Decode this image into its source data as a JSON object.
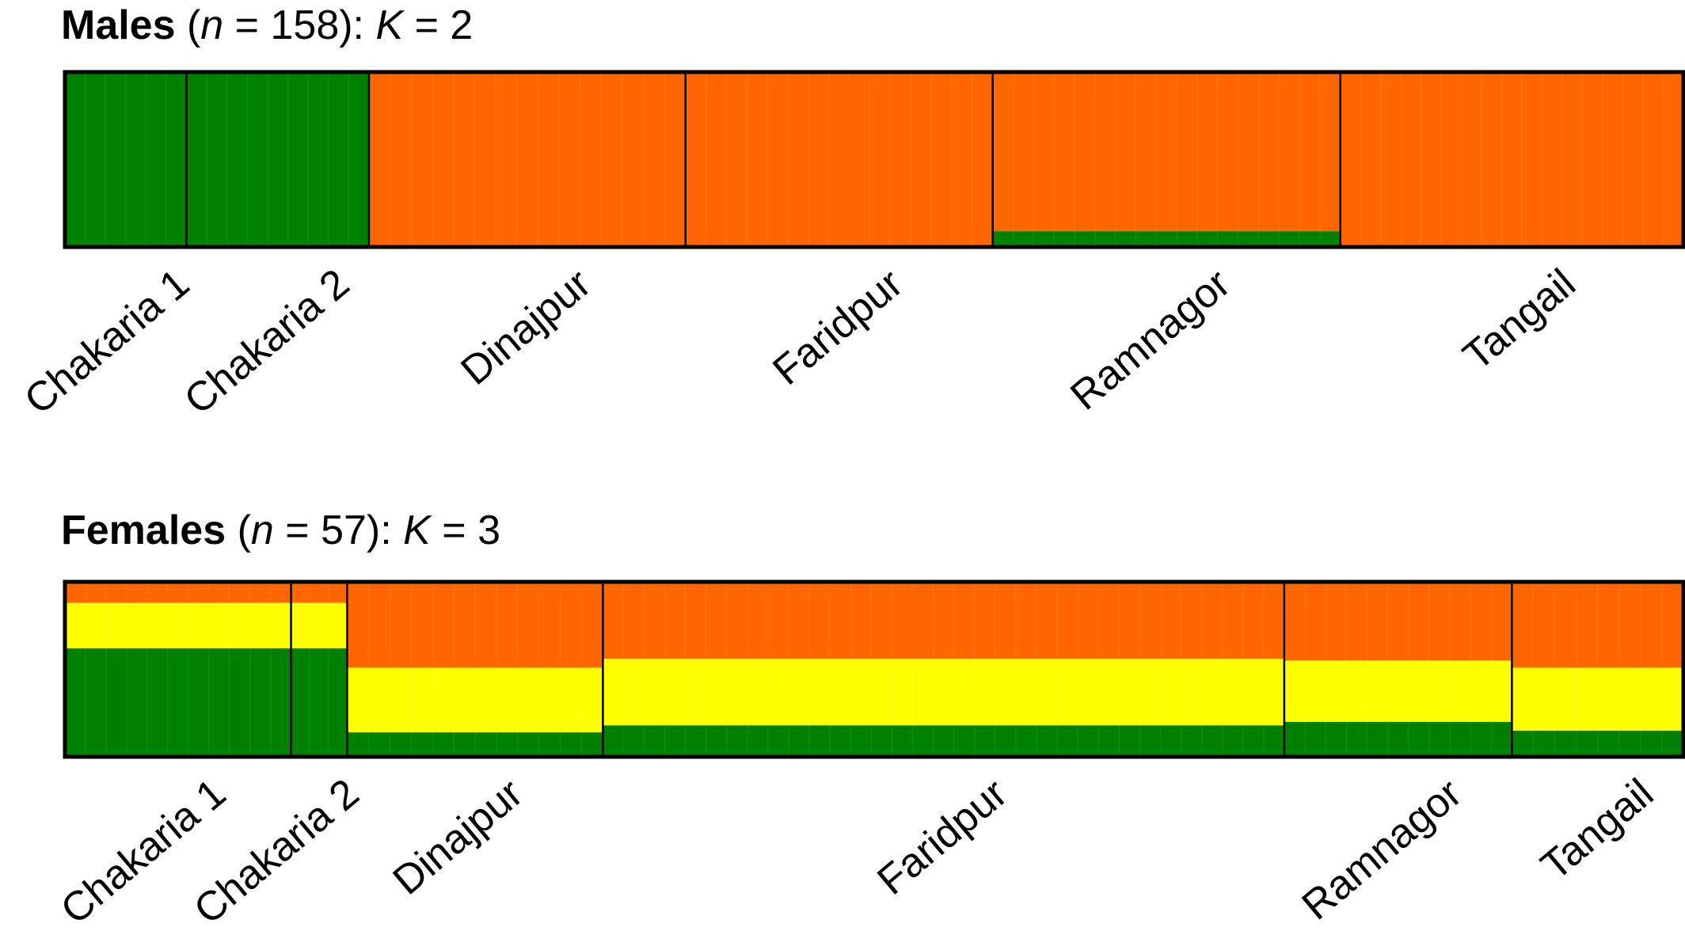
{
  "chart_data": [
    {
      "type": "bar",
      "subtype": "stacked-admixture",
      "title": {
        "group": "Males",
        "n_label": "n",
        "n_text": " = 158): ",
        "k_label": "K",
        "k_text": " = 2"
      },
      "n": 158,
      "K": 2,
      "categories": [
        "Chakaria 1",
        "Chakaria 2",
        "Dinajpur",
        "Faridpur",
        "Ramnagor",
        "Tangail"
      ],
      "widths": [
        0.078,
        0.117,
        0.203,
        0.197,
        0.223,
        0.22
      ],
      "series": [
        {
          "color": "#008000",
          "values": [
            1.0,
            1.0,
            0.0,
            0.0,
            0.09,
            0.0
          ]
        },
        {
          "color": "#ff6600",
          "values": [
            0.0,
            0.0,
            1.0,
            1.0,
            0.91,
            1.0
          ]
        }
      ],
      "ylim": [
        0,
        1
      ]
    },
    {
      "type": "bar",
      "subtype": "stacked-admixture",
      "title": {
        "group": "Females",
        "n_label": "n",
        "n_text": " = 57): ",
        "k_label": "K",
        "k_text": " = 3"
      },
      "n": 57,
      "K": 3,
      "categories": [
        "Chakaria 1",
        "Chakaria 2",
        "Dinajpur",
        "Faridpur",
        "Ramnagor",
        "Tangail"
      ],
      "widths": [
        0.145,
        0.036,
        0.164,
        0.437,
        0.146,
        0.11
      ],
      "series": [
        {
          "color": "#008000",
          "values": [
            0.62,
            0.62,
            0.14,
            0.18,
            0.2,
            0.15
          ]
        },
        {
          "color": "#ffff00",
          "values": [
            0.26,
            0.26,
            0.37,
            0.38,
            0.35,
            0.36
          ]
        },
        {
          "color": "#ff6600",
          "values": [
            0.12,
            0.12,
            0.49,
            0.44,
            0.45,
            0.49
          ]
        }
      ],
      "ylim": [
        0,
        1
      ]
    }
  ]
}
